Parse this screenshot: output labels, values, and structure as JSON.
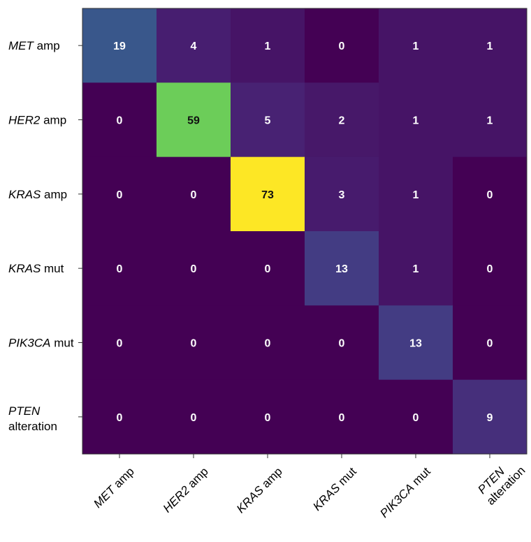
{
  "chart_data": {
    "type": "heatmap",
    "title": "",
    "xlabel": "",
    "ylabel": "",
    "colormap": "viridis",
    "value_range": [
      0,
      73
    ],
    "grid": false,
    "legend": "none",
    "rows": [
      {
        "italic": "MET",
        "rest": " amp"
      },
      {
        "italic": "HER2",
        "rest": " amp"
      },
      {
        "italic": "KRAS",
        "rest": " amp"
      },
      {
        "italic": "KRAS",
        "rest": " mut"
      },
      {
        "italic": "PIK3CA",
        "rest": " mut"
      },
      {
        "italic": "PTEN",
        "rest": "alteration"
      }
    ],
    "columns": [
      {
        "italic": "MET",
        "rest": " amp"
      },
      {
        "italic": "HER2",
        "rest": " amp"
      },
      {
        "italic": "KRAS",
        "rest": " amp"
      },
      {
        "italic": "KRAS",
        "rest": " mut"
      },
      {
        "italic": "PIK3CA",
        "rest": " mut"
      },
      {
        "italic": "PTEN",
        "rest": "alteration"
      }
    ],
    "matrix": [
      [
        19,
        4,
        1,
        0,
        1,
        1
      ],
      [
        0,
        59,
        5,
        2,
        1,
        1
      ],
      [
        0,
        0,
        73,
        3,
        1,
        0
      ],
      [
        0,
        0,
        0,
        13,
        1,
        0
      ],
      [
        0,
        0,
        0,
        0,
        13,
        0
      ],
      [
        0,
        0,
        0,
        0,
        0,
        9
      ]
    ]
  }
}
